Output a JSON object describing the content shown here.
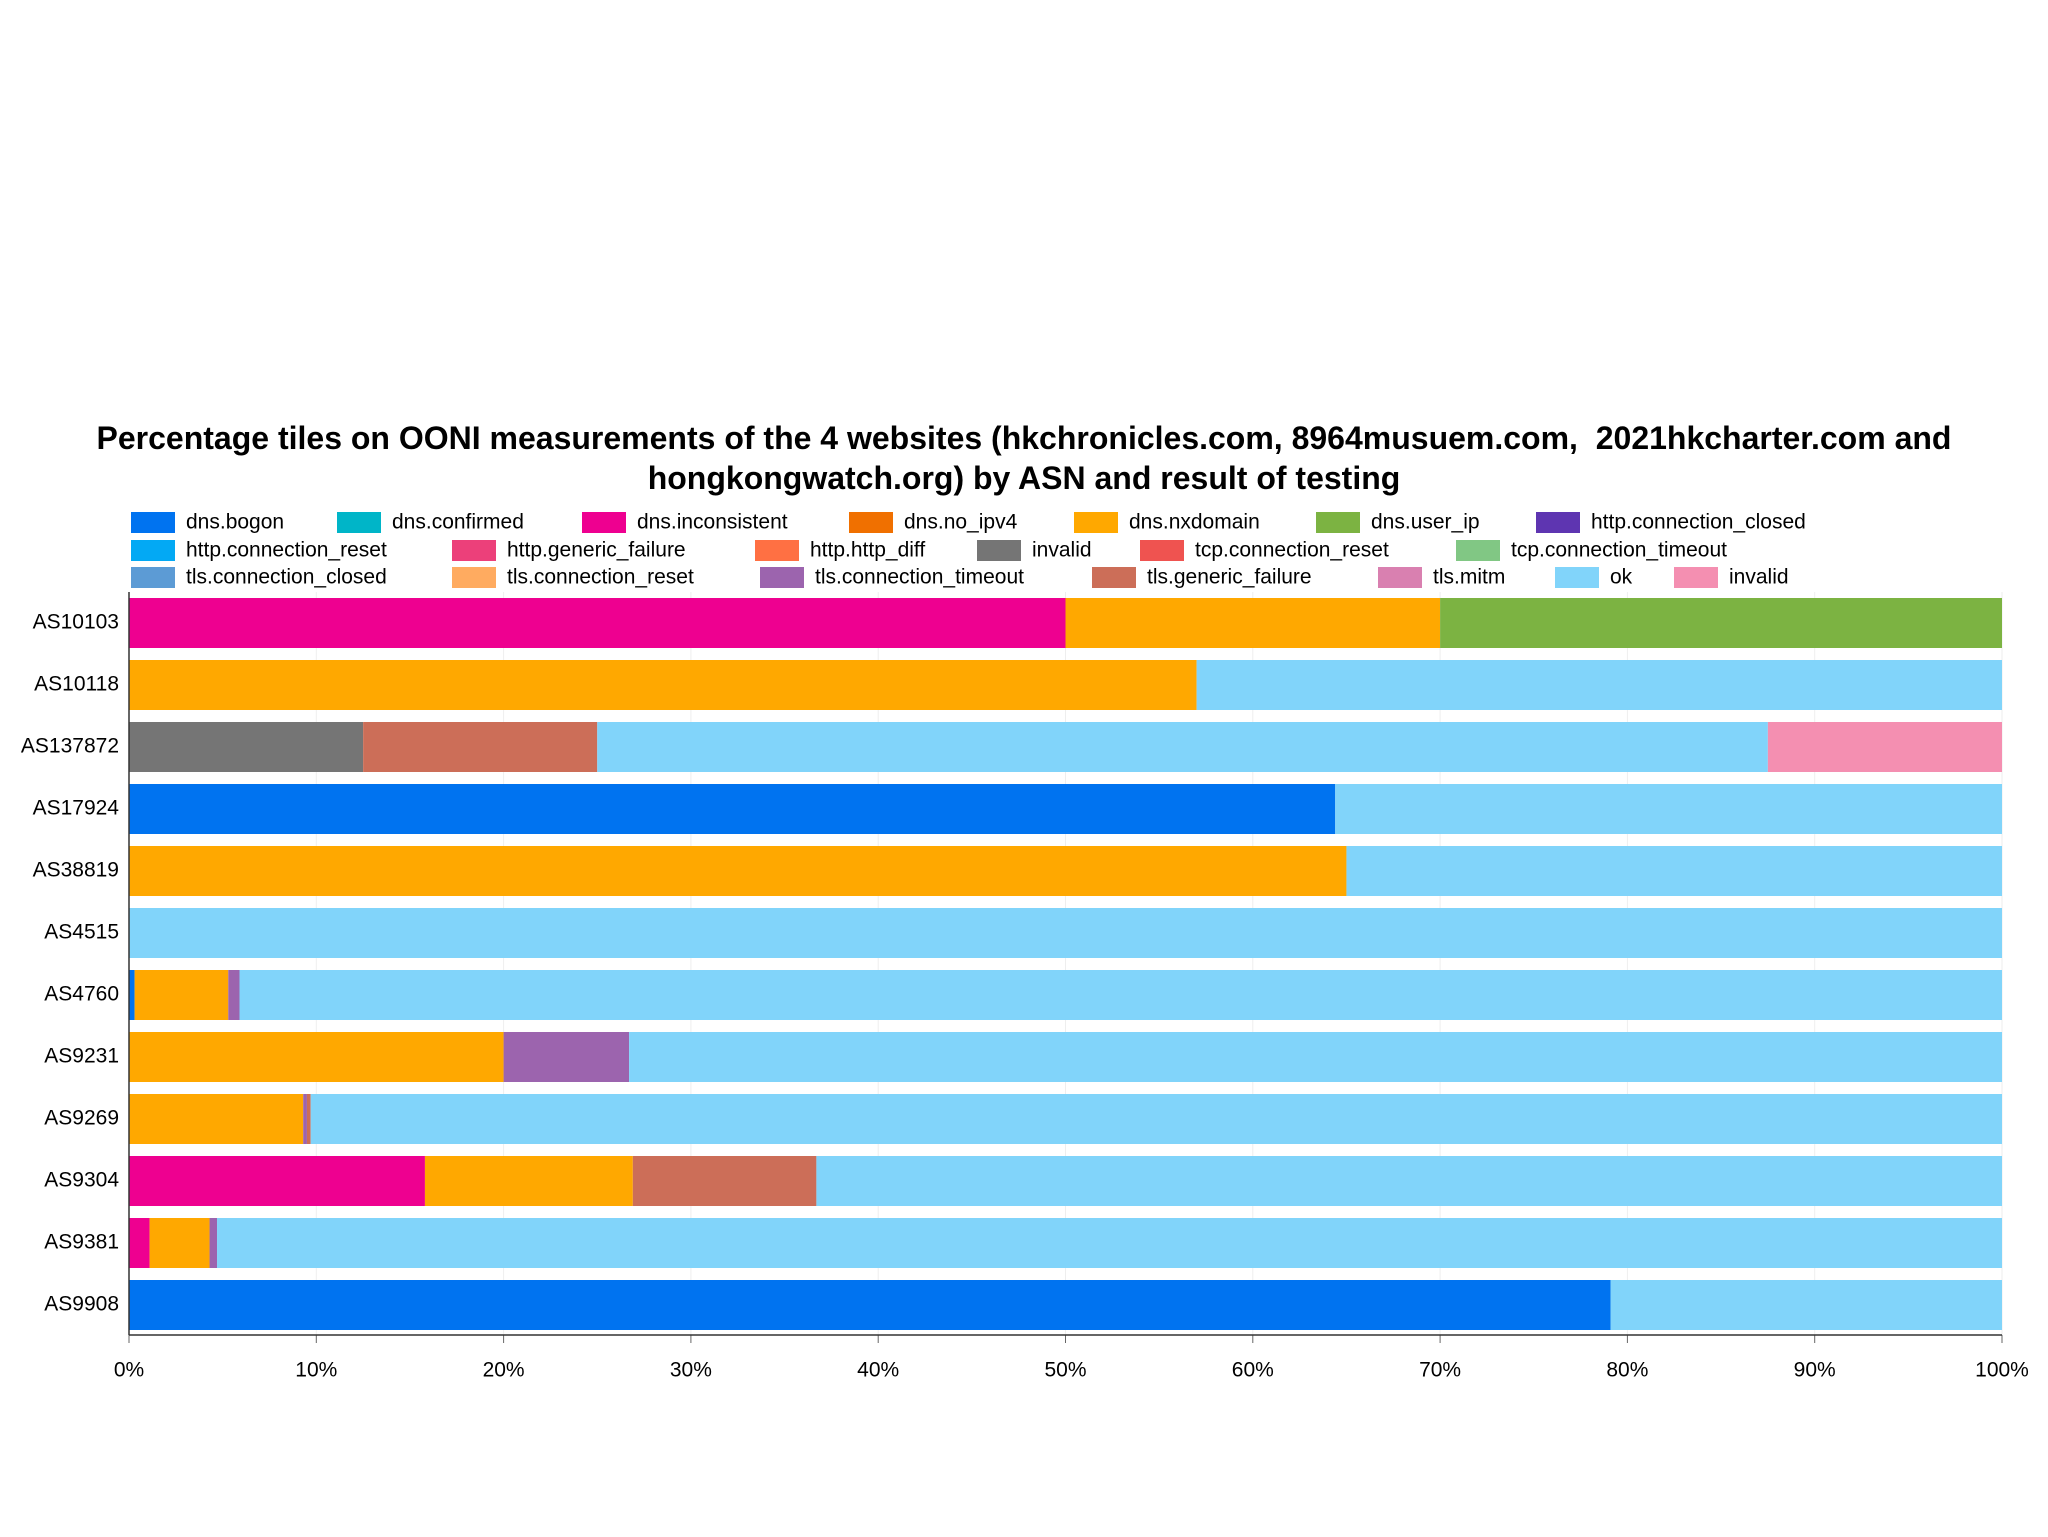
{
  "chart_data": {
    "type": "stacked-barh",
    "title": "Percentage tiles on OONI measurements of the 4 websites (hkchronicles.com, 8964musuem.com,  2021hkcharter.com and hongkongwatch.org) by ASN and result of testing",
    "categories": [
      "AS10103",
      "AS10118",
      "AS137872",
      "AS17924",
      "AS38819",
      "AS4515",
      "AS4760",
      "AS9231",
      "AS9269",
      "AS9304",
      "AS9381",
      "AS9908"
    ],
    "xlim": [
      0,
      100
    ],
    "xticks": [
      {
        "value": 0,
        "label": "0%"
      },
      {
        "value": 10,
        "label": "10%"
      },
      {
        "value": 20,
        "label": "20%"
      },
      {
        "value": 30,
        "label": "30%"
      },
      {
        "value": 40,
        "label": "40%"
      },
      {
        "value": 50,
        "label": "50%"
      },
      {
        "value": 60,
        "label": "60%"
      },
      {
        "value": 70,
        "label": "70%"
      },
      {
        "value": 80,
        "label": "80%"
      },
      {
        "value": 90,
        "label": "90%"
      },
      {
        "value": 100,
        "label": "100%"
      }
    ],
    "series": [
      {
        "name": "dns.bogon",
        "color": "#0073f0",
        "values": [
          0,
          0,
          0,
          64.4,
          0,
          0,
          0.3,
          0,
          0,
          0,
          0,
          79.1
        ]
      },
      {
        "name": "dns.confirmed",
        "color": "#00b5c8",
        "values": [
          0,
          0,
          0,
          0,
          0,
          0,
          0,
          0,
          0,
          0,
          0,
          0
        ]
      },
      {
        "name": "dns.inconsistent",
        "color": "#ee0090",
        "values": [
          50,
          0,
          0,
          0,
          0,
          0,
          0,
          0,
          0,
          15.8,
          1.1,
          0
        ]
      },
      {
        "name": "dns.no_ipv4",
        "color": "#f07000",
        "values": [
          0,
          0,
          0,
          0,
          0,
          0,
          0,
          0,
          0,
          0,
          0,
          0
        ]
      },
      {
        "name": "dns.nxdomain",
        "color": "#ffa800",
        "values": [
          20,
          57,
          0,
          0,
          65,
          0,
          5,
          20,
          9.3,
          11.1,
          3.2,
          0
        ]
      },
      {
        "name": "dns.user_ip",
        "color": "#7cb342",
        "values": [
          30,
          0,
          0,
          0,
          0,
          0,
          0,
          0,
          0,
          0,
          0,
          0
        ]
      },
      {
        "name": "http.connection_closed",
        "color": "#5e35b1",
        "values": [
          0,
          0,
          0,
          0,
          0,
          0,
          0,
          0,
          0,
          0,
          0,
          0
        ]
      },
      {
        "name": "http.connection_reset",
        "color": "#03a9f4",
        "values": [
          0,
          0,
          0,
          0,
          0,
          0,
          0,
          0,
          0,
          0,
          0,
          0
        ]
      },
      {
        "name": "http.generic_failure",
        "color": "#ec407a",
        "values": [
          0,
          0,
          0,
          0,
          0,
          0,
          0,
          0,
          0,
          0,
          0,
          0
        ]
      },
      {
        "name": "http.http_diff",
        "color": "#ff7043",
        "values": [
          0,
          0,
          0,
          0,
          0,
          0,
          0,
          0,
          0,
          0,
          0,
          0
        ]
      },
      {
        "name": "invalid",
        "color": "#757575",
        "values": [
          0,
          0,
          12.5,
          0,
          0,
          0,
          0,
          0,
          0,
          0,
          0,
          0
        ]
      },
      {
        "name": "tcp.connection_reset",
        "color": "#ef5350",
        "values": [
          0,
          0,
          0,
          0,
          0,
          0,
          0,
          0,
          0,
          0,
          0,
          0
        ]
      },
      {
        "name": "tcp.connection_timeout",
        "color": "#81c784",
        "values": [
          0,
          0,
          0,
          0,
          0,
          0,
          0,
          0,
          0,
          0,
          0,
          0
        ]
      },
      {
        "name": "tls.connection_closed",
        "color": "#5c9bd5",
        "values": [
          0,
          0,
          0,
          0,
          0,
          0,
          0,
          0,
          0,
          0,
          0,
          0
        ]
      },
      {
        "name": "tls.connection_reset",
        "color": "#ffab60",
        "values": [
          0,
          0,
          0,
          0,
          0,
          0,
          0,
          0,
          0,
          0,
          0,
          0
        ]
      },
      {
        "name": "tls.connection_timeout",
        "color": "#9c64ae",
        "values": [
          0,
          0,
          0,
          0,
          0,
          0,
          0.6,
          6.7,
          0.2,
          0,
          0.4,
          0
        ]
      },
      {
        "name": "tls.generic_failure",
        "color": "#cc6e58",
        "values": [
          0,
          0,
          12.5,
          0,
          0,
          0,
          0,
          0,
          0.2,
          9.8,
          0,
          0
        ]
      },
      {
        "name": "tls.mitm",
        "color": "#d980b0",
        "values": [
          0,
          0,
          0,
          0,
          0,
          0,
          0,
          0,
          0,
          0,
          0,
          0
        ]
      },
      {
        "name": "ok",
        "color": "#81d4fa",
        "values": [
          0,
          43,
          62.5,
          35.6,
          35,
          100,
          94.1,
          73.3,
          90.3,
          63.3,
          95.3,
          20.9
        ]
      },
      {
        "name": "invalid",
        "color": "#f48fb1",
        "values": [
          0,
          0,
          12.5,
          0,
          0,
          0,
          0,
          0,
          0,
          0,
          0,
          0
        ]
      }
    ]
  }
}
